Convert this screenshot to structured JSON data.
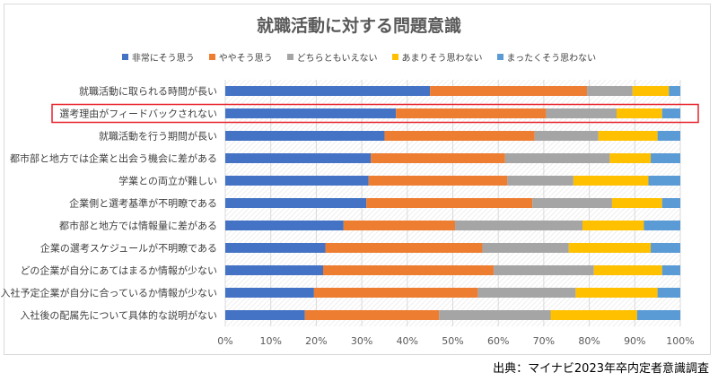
{
  "chart_data": {
    "type": "bar",
    "orientation": "horizontal",
    "stacked": "percent",
    "title": "就職活動に対する問題意識",
    "xlabel": "",
    "ylabel": "",
    "xlim": [
      0,
      100
    ],
    "x_ticks": [
      "0%",
      "10%",
      "20%",
      "30%",
      "40%",
      "50%",
      "60%",
      "70%",
      "80%",
      "90%",
      "100%"
    ],
    "grid": true,
    "legend_position": "top",
    "categories": [
      "就職活動に取られる時間が長い",
      "選考理由がフィードバックされない",
      "就職活動を行う期間が長い",
      "都市部と地方では企業と出会う機会に差がある",
      "学業との両立が難しい",
      "企業側と選考基準が不明瞭である",
      "都市部と地方では情報量に差がある",
      "企業の選考スケジュールが不明瞭である",
      "どの企業が自分にあてはまるか情報が少ない",
      "入社予定企業が自分に合っているか情報が少ない",
      "入社後の配属先について具体的な説明がない"
    ],
    "highlighted_category": "選考理由がフィードバックされない",
    "series": [
      {
        "name": "非常にそう思う",
        "color": "#4472c4",
        "values": [
          45,
          37.5,
          35,
          32,
          31.5,
          31,
          26,
          22,
          21.5,
          19.5,
          17.5
        ]
      },
      {
        "name": "ややそう思う",
        "color": "#ed7d31",
        "values": [
          34.5,
          33,
          33,
          29.5,
          30.5,
          36.5,
          24.5,
          34.5,
          37.5,
          36,
          29.5
        ]
      },
      {
        "name": "どちらともいえない",
        "color": "#a5a5a5",
        "values": [
          10,
          15.5,
          14,
          23,
          14.5,
          17.5,
          28,
          19,
          22,
          21.5,
          24.5
        ]
      },
      {
        "name": "あまりそう思わない",
        "color": "#ffc000",
        "values": [
          8,
          10,
          13,
          9,
          16.5,
          11,
          13.5,
          18,
          15,
          18,
          19
        ]
      },
      {
        "name": "まったくそう思わない",
        "color": "#5b9bd5",
        "values": [
          2.5,
          4,
          5,
          6.5,
          7,
          4,
          8,
          6.5,
          4,
          5,
          9.5
        ]
      }
    ]
  },
  "source_note": "出典：マイナビ2023年卒内定者意識調査",
  "colors": {
    "highlight_border": "#e8232b",
    "grid": "#d9d9d9"
  }
}
